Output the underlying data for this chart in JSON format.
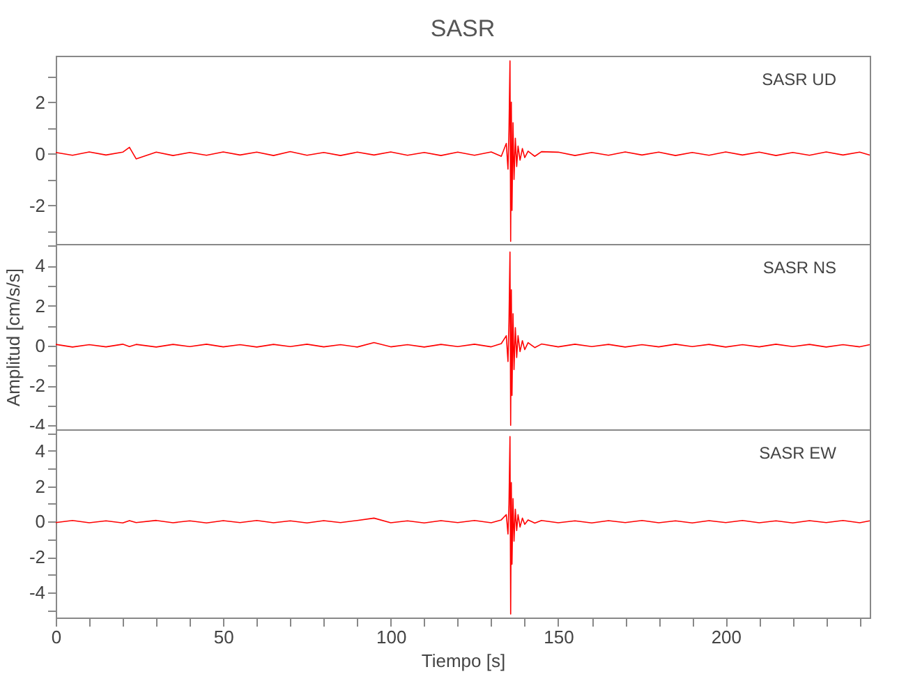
{
  "chart_data": [
    {
      "type": "line",
      "title": "SASR",
      "annotations": [
        "SASR   UD"
      ],
      "tick_labels": "y",
      "grid": false,
      "x": [
        0,
        5,
        10,
        15,
        20,
        22,
        24,
        30,
        35,
        40,
        45,
        50,
        55,
        60,
        65,
        70,
        75,
        80,
        85,
        90,
        95,
        100,
        105,
        110,
        115,
        120,
        125,
        130,
        133,
        134.5,
        135,
        135.3,
        135.6,
        135.8,
        136,
        136.2,
        136.5,
        136.8,
        137.2,
        137.6,
        138,
        138.6,
        139.3,
        140,
        141,
        143,
        145,
        150,
        155,
        160,
        165,
        170,
        175,
        180,
        185,
        190,
        195,
        200,
        205,
        210,
        215,
        220,
        225,
        230,
        235,
        240,
        243
      ],
      "series": [
        {
          "color": "#ff0000",
          "values": [
            0.05,
            -0.06,
            0.07,
            -0.05,
            0.06,
            0.25,
            -0.2,
            0.06,
            -0.07,
            0.05,
            -0.06,
            0.07,
            -0.05,
            0.06,
            -0.07,
            0.08,
            -0.06,
            0.05,
            -0.07,
            0.06,
            -0.05,
            0.07,
            -0.06,
            0.05,
            -0.07,
            0.06,
            -0.06,
            0.07,
            -0.1,
            0.4,
            -0.6,
            0.9,
            3.6,
            -3.4,
            2.0,
            -2.2,
            1.2,
            -1.0,
            0.6,
            -0.5,
            0.3,
            -0.25,
            0.2,
            -0.15,
            0.1,
            -0.1,
            0.08,
            0.06,
            -0.07,
            0.05,
            -0.06,
            0.07,
            -0.05,
            0.06,
            -0.07,
            0.05,
            -0.06,
            0.07,
            -0.05,
            0.06,
            -0.07,
            0.05,
            -0.06,
            0.07,
            -0.05,
            0.06,
            -0.05
          ]
        }
      ],
      "xlim": [
        0,
        243
      ],
      "xticks": [
        0,
        {
          "value": 10,
          "label": null
        },
        {
          "value": 20,
          "label": null
        },
        {
          "value": 30,
          "label": null
        },
        {
          "value": 40,
          "label": null
        },
        50,
        {
          "value": 60,
          "label": null
        },
        {
          "value": 70,
          "label": null
        },
        {
          "value": 80,
          "label": null
        },
        {
          "value": 90,
          "label": null
        },
        100,
        {
          "value": 110,
          "label": null
        },
        {
          "value": 120,
          "label": null
        },
        {
          "value": 130,
          "label": null
        },
        {
          "value": 140,
          "label": null
        },
        150,
        {
          "value": 160,
          "label": null
        },
        {
          "value": 170,
          "label": null
        },
        {
          "value": 180,
          "label": null
        },
        {
          "value": 190,
          "label": null
        },
        200,
        {
          "value": 210,
          "label": null
        },
        {
          "value": 220,
          "label": null
        },
        {
          "value": 230,
          "label": null
        },
        {
          "value": 240,
          "label": null
        }
      ],
      "ylim": [
        -3.5,
        3.8
      ],
      "yticks": [
        {
          "value": -3,
          "label": null
        },
        -2,
        {
          "value": -1,
          "label": null
        },
        0,
        {
          "value": 1,
          "label": null
        },
        2,
        {
          "value": 3,
          "label": null
        }
      ]
    },
    {
      "type": "line",
      "ylabel": "Amplitud [cm/s/s]",
      "annotations": [
        "SASR   NS"
      ],
      "tick_labels": "y",
      "grid": false,
      "x": [
        0,
        5,
        10,
        15,
        20,
        22,
        24,
        30,
        35,
        40,
        45,
        50,
        55,
        60,
        65,
        70,
        75,
        80,
        85,
        90,
        95,
        100,
        105,
        110,
        115,
        120,
        125,
        130,
        133,
        134.5,
        135,
        135.3,
        135.6,
        135.8,
        136,
        136.2,
        136.5,
        136.8,
        137.2,
        137.6,
        138,
        138.6,
        139.3,
        140,
        141,
        143,
        145,
        150,
        155,
        160,
        165,
        170,
        175,
        180,
        185,
        190,
        195,
        200,
        205,
        210,
        215,
        220,
        225,
        230,
        235,
        240,
        243
      ],
      "series": [
        {
          "color": "#ff0000",
          "values": [
            0.06,
            -0.07,
            0.05,
            -0.06,
            0.07,
            -0.05,
            0.06,
            -0.07,
            0.06,
            -0.05,
            0.07,
            -0.06,
            0.05,
            -0.07,
            0.06,
            -0.05,
            0.07,
            -0.06,
            0.05,
            -0.07,
            0.15,
            -0.06,
            0.05,
            -0.07,
            0.06,
            -0.05,
            0.07,
            -0.06,
            0.1,
            0.5,
            -0.8,
            1.2,
            4.7,
            -4.0,
            2.8,
            -2.5,
            1.6,
            -1.2,
            0.9,
            -0.6,
            0.5,
            -0.3,
            0.25,
            -0.2,
            0.15,
            -0.1,
            0.08,
            -0.06,
            0.07,
            -0.05,
            0.06,
            -0.07,
            0.05,
            -0.06,
            0.07,
            -0.05,
            0.06,
            -0.07,
            0.05,
            -0.06,
            0.07,
            -0.05,
            0.06,
            -0.07,
            0.05,
            -0.06,
            0.05
          ]
        }
      ],
      "xlim": [
        0,
        243
      ],
      "xticks": [
        0,
        {
          "value": 10,
          "label": null
        },
        {
          "value": 20,
          "label": null
        },
        {
          "value": 30,
          "label": null
        },
        {
          "value": 40,
          "label": null
        },
        50,
        {
          "value": 60,
          "label": null
        },
        {
          "value": 70,
          "label": null
        },
        {
          "value": 80,
          "label": null
        },
        {
          "value": 90,
          "label": null
        },
        100,
        {
          "value": 110,
          "label": null
        },
        {
          "value": 120,
          "label": null
        },
        {
          "value": 130,
          "label": null
        },
        {
          "value": 140,
          "label": null
        },
        150,
        {
          "value": 160,
          "label": null
        },
        {
          "value": 170,
          "label": null
        },
        {
          "value": 180,
          "label": null
        },
        {
          "value": 190,
          "label": null
        },
        200,
        {
          "value": 210,
          "label": null
        },
        {
          "value": 220,
          "label": null
        },
        {
          "value": 230,
          "label": null
        },
        {
          "value": 240,
          "label": null
        }
      ],
      "ylim": [
        -4.2,
        5.1
      ],
      "yticks": [
        -4,
        {
          "value": -3,
          "label": null
        },
        -2,
        {
          "value": -1,
          "label": null
        },
        0,
        {
          "value": 1,
          "label": null
        },
        2,
        {
          "value": 3,
          "label": null
        },
        4,
        {
          "value": 5,
          "label": null
        }
      ]
    },
    {
      "type": "line",
      "xlabel": "Tiempo [s]",
      "annotations": [
        "SASR   EW"
      ],
      "grid": false,
      "x": [
        0,
        5,
        10,
        15,
        20,
        22,
        24,
        30,
        35,
        40,
        45,
        50,
        55,
        60,
        65,
        70,
        75,
        80,
        85,
        90,
        95,
        100,
        105,
        110,
        115,
        120,
        125,
        130,
        133,
        134.5,
        135,
        135.3,
        135.6,
        135.8,
        136,
        136.2,
        136.5,
        136.8,
        137.2,
        137.6,
        138,
        138.6,
        139.3,
        140,
        141,
        143,
        145,
        150,
        155,
        160,
        165,
        170,
        175,
        180,
        185,
        190,
        195,
        200,
        205,
        210,
        215,
        220,
        225,
        230,
        235,
        240,
        243
      ],
      "series": [
        {
          "color": "#ff0000",
          "values": [
            -0.05,
            0.07,
            -0.06,
            0.05,
            -0.07,
            0.06,
            -0.05,
            0.07,
            -0.06,
            0.05,
            -0.07,
            0.06,
            -0.05,
            0.07,
            -0.06,
            0.05,
            -0.07,
            0.06,
            -0.05,
            0.07,
            0.2,
            -0.06,
            0.05,
            -0.07,
            0.06,
            -0.05,
            0.07,
            -0.06,
            0.1,
            0.4,
            -0.7,
            1.0,
            4.8,
            -5.2,
            2.2,
            -2.4,
            1.3,
            -1.1,
            0.7,
            -0.5,
            0.4,
            -0.3,
            0.2,
            -0.15,
            0.1,
            -0.08,
            0.07,
            -0.06,
            0.05,
            -0.07,
            0.06,
            -0.05,
            0.07,
            -0.06,
            0.05,
            -0.07,
            0.06,
            -0.05,
            0.07,
            -0.06,
            0.05,
            -0.07,
            0.06,
            -0.05,
            0.07,
            -0.06,
            0.05
          ]
        }
      ],
      "xlim": [
        0,
        243
      ],
      "xticks": [
        0,
        {
          "value": 10,
          "label": null
        },
        {
          "value": 20,
          "label": null
        },
        {
          "value": 30,
          "label": null
        },
        {
          "value": 40,
          "label": null
        },
        50,
        {
          "value": 60,
          "label": null
        },
        {
          "value": 70,
          "label": null
        },
        {
          "value": 80,
          "label": null
        },
        {
          "value": 90,
          "label": null
        },
        100,
        {
          "value": 110,
          "label": null
        },
        {
          "value": 120,
          "label": null
        },
        {
          "value": 130,
          "label": null
        },
        {
          "value": 140,
          "label": null
        },
        150,
        {
          "value": 160,
          "label": null
        },
        {
          "value": 170,
          "label": null
        },
        {
          "value": 180,
          "label": null
        },
        {
          "value": 190,
          "label": null
        },
        200,
        {
          "value": 210,
          "label": null
        },
        {
          "value": 220,
          "label": null
        },
        {
          "value": 230,
          "label": null
        },
        {
          "value": 240,
          "label": null
        }
      ],
      "ylim": [
        -5.4,
        5.2
      ],
      "yticks": [
        {
          "value": -5,
          "label": null
        },
        -4,
        {
          "value": -3,
          "label": null
        },
        -2,
        {
          "value": -1,
          "label": null
        },
        0,
        {
          "value": 1,
          "label": null
        },
        2,
        {
          "value": 3,
          "label": null
        },
        4,
        {
          "value": 5,
          "label": null
        }
      ]
    }
  ]
}
